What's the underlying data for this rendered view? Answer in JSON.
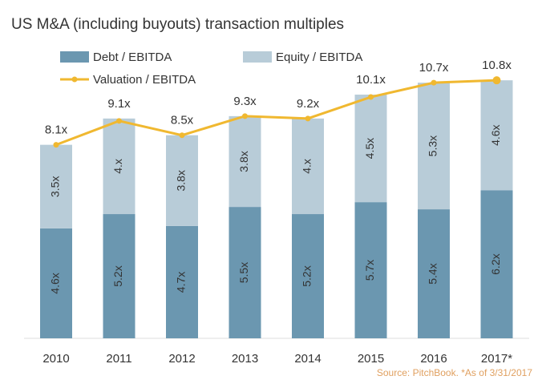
{
  "chart_data": {
    "type": "bar",
    "title": "US M&A (including buyouts) transaction multiples",
    "source": "Source: PitchBook. *As of 3/31/2017",
    "categories": [
      "2010",
      "2011",
      "2012",
      "2013",
      "2014",
      "2015",
      "2016",
      "2017*"
    ],
    "series": [
      {
        "name": "Debt / EBITDA",
        "kind": "stacked-bar",
        "color": "#6b97b0",
        "values": [
          4.6,
          5.2,
          4.7,
          5.5,
          5.2,
          5.7,
          5.4,
          6.2
        ],
        "labels": [
          "4.6x",
          "5.2x",
          "4.7x",
          "5.5x",
          "5.2x",
          "5.7x",
          "5.4x",
          "6.2x"
        ]
      },
      {
        "name": "Equity / EBITDA",
        "kind": "stacked-bar",
        "color": "#b8ccd8",
        "values": [
          3.5,
          4.0,
          3.8,
          3.8,
          4.0,
          4.5,
          5.3,
          4.6
        ],
        "labels": [
          "3.5x",
          "4.x",
          "3.8x",
          "3.8x",
          "4.x",
          "4.5x",
          "5.3x",
          "4.6x"
        ]
      },
      {
        "name": "Valuation / EBITDA",
        "kind": "line",
        "color": "#f0b830",
        "values": [
          8.1,
          9.1,
          8.5,
          9.3,
          9.2,
          10.1,
          10.7,
          10.8
        ],
        "labels": [
          "8.1x",
          "9.1x",
          "8.5x",
          "9.3x",
          "9.2x",
          "10.1x",
          "10.7x",
          "10.8x"
        ]
      }
    ],
    "ylim": [
      0,
      12
    ],
    "grid": false,
    "legend_position": "top"
  }
}
